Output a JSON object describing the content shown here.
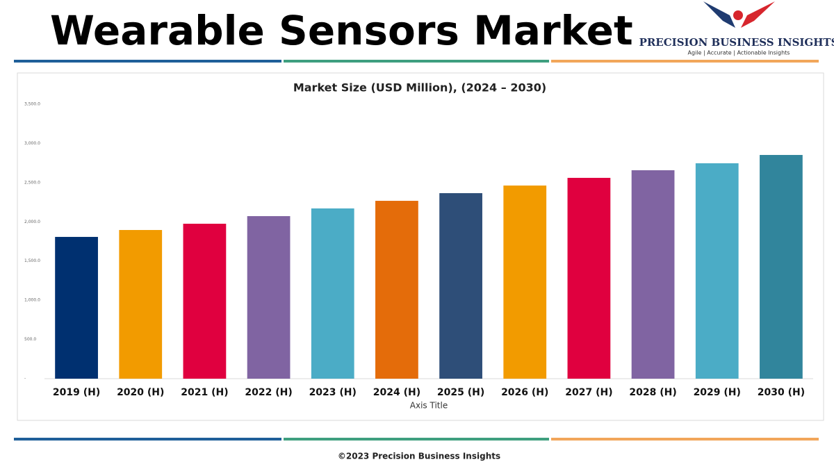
{
  "header": {
    "title": "Wearable Sensors Market",
    "brand": "PRECISION BUSINESS INSIGHTS",
    "tagline": "Agile | Accurate | Actionable Insights"
  },
  "chart_data": {
    "type": "bar",
    "title": "Market Size (USD Million), (2024 – 2030)",
    "x_label": "Axis Title",
    "categories": [
      "2019 (H)",
      "2020 (H)",
      "2021 (H)",
      "2022 (H)",
      "2023 (H)",
      "2024 (H)",
      "2025 (H)",
      "2026 (H)",
      "2027 (H)",
      "2028 (H)",
      "2029 (H)",
      "2030 (H)"
    ],
    "values": [
      1808,
      1896,
      1976,
      2073,
      2171,
      2268,
      2366,
      2463,
      2561,
      2658,
      2747,
      2853
    ],
    "colors": [
      "#003070",
      "#f29b00",
      "#e0003f",
      "#8064a2",
      "#4bacc6",
      "#e46c0a",
      "#2e4e78",
      "#f29b00",
      "#e0003f",
      "#8064a2",
      "#4bacc6",
      "#31859c"
    ],
    "ylim": [
      0,
      3500
    ],
    "yticks": [
      {
        "value": 0,
        "label": "-"
      },
      {
        "value": 500,
        "label": "500.0"
      },
      {
        "value": 1000,
        "label": "1,000.0"
      },
      {
        "value": 1500,
        "label": "1,500.0"
      },
      {
        "value": 2000,
        "label": "2,000.0"
      },
      {
        "value": 2500,
        "label": "2,500.0"
      },
      {
        "value": 3000,
        "label": "3,000.0"
      },
      {
        "value": 3500,
        "label": "3,500.0"
      }
    ],
    "grid": false
  },
  "footer": {
    "copyright": "©2023 Precision Business Insights"
  }
}
